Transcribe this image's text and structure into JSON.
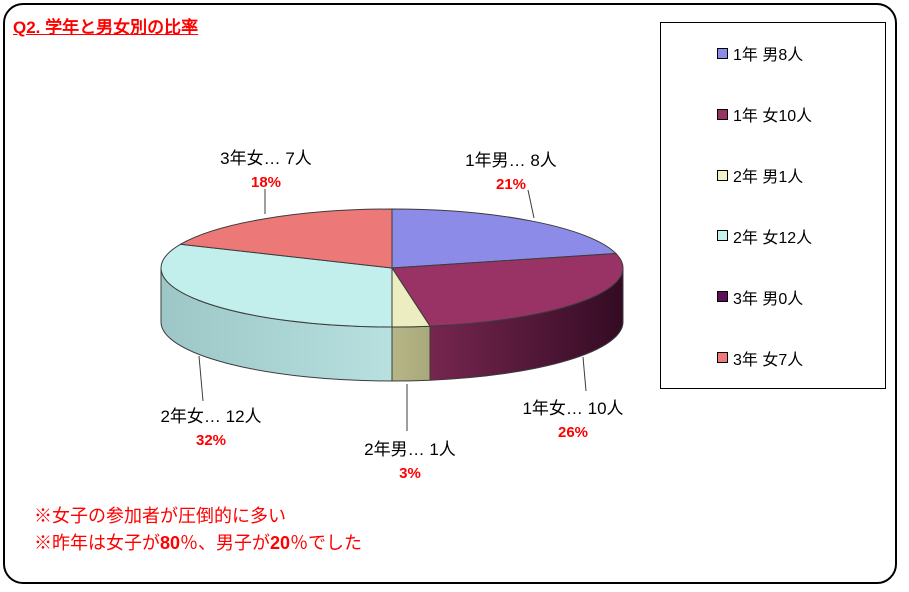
{
  "window": {
    "background": "#FFFFFF",
    "border_color": "#000000"
  },
  "title": {
    "text": "Q2. 学年と男女別の比率",
    "color": "#FF0000"
  },
  "legend": {
    "items": [
      {
        "label": "1年 男8人",
        "color": "#8C8CE8"
      },
      {
        "label": "1年 女10人",
        "color": "#993366"
      },
      {
        "label": "2年 男1人",
        "color": "#F2F2C6"
      },
      {
        "label": "2年 女12人",
        "color": "#C6F0EE"
      },
      {
        "label": "3年 男0人",
        "color": "#5A115A"
      },
      {
        "label": "3年 女7人",
        "color": "#EE7A7A"
      }
    ]
  },
  "chart_data": {
    "type": "pie",
    "three_d": true,
    "title": "Q2. 学年と男女別の比率",
    "start_angle_deg": 0,
    "direction": "clockwise",
    "categories": [
      "1年 男",
      "1年 女",
      "2年 男",
      "2年 女",
      "3年 男",
      "3年 女"
    ],
    "values": [
      8,
      10,
      1,
      12,
      0,
      7
    ],
    "unit": "人",
    "percents": [
      21,
      26,
      3,
      32,
      0,
      18
    ],
    "legend_position": "right",
    "outline_color": "#3c3c3c",
    "colors": [
      {
        "top": "#8C8CE8"
      },
      {
        "top": "#993366",
        "wall_from": "#76264F",
        "wall_to": "#340B23"
      },
      {
        "top": "#EDEDC2",
        "wall_from": "#B6B687",
        "wall_to": "#A8A87A"
      },
      {
        "top": "#C2EEEC",
        "wall_from": "#9DC6C7",
        "wall_to": "#B7E0DF"
      },
      {
        "top": "#5A115A"
      },
      {
        "top": "#EC7878"
      }
    ]
  },
  "slice_labels": [
    {
      "name": "1年男… 8人",
      "pct": "21%"
    },
    {
      "name": "1年女… 10人",
      "pct": "26%"
    },
    {
      "name": "2年男… 1人",
      "pct": "3%"
    },
    {
      "name": "2年女… 12人",
      "pct": "32%"
    },
    {
      "name": "3年女… 7人",
      "pct": "18%"
    }
  ],
  "notes": {
    "color": "#FF0000",
    "line1": "※女子の参加者が圧倒的に多い",
    "line2_prefix": "※昨年は女子が",
    "line2_value1": "80",
    "line2_mid": "％、男子が",
    "line2_value2": "20",
    "line2_suffix": "％でした"
  }
}
